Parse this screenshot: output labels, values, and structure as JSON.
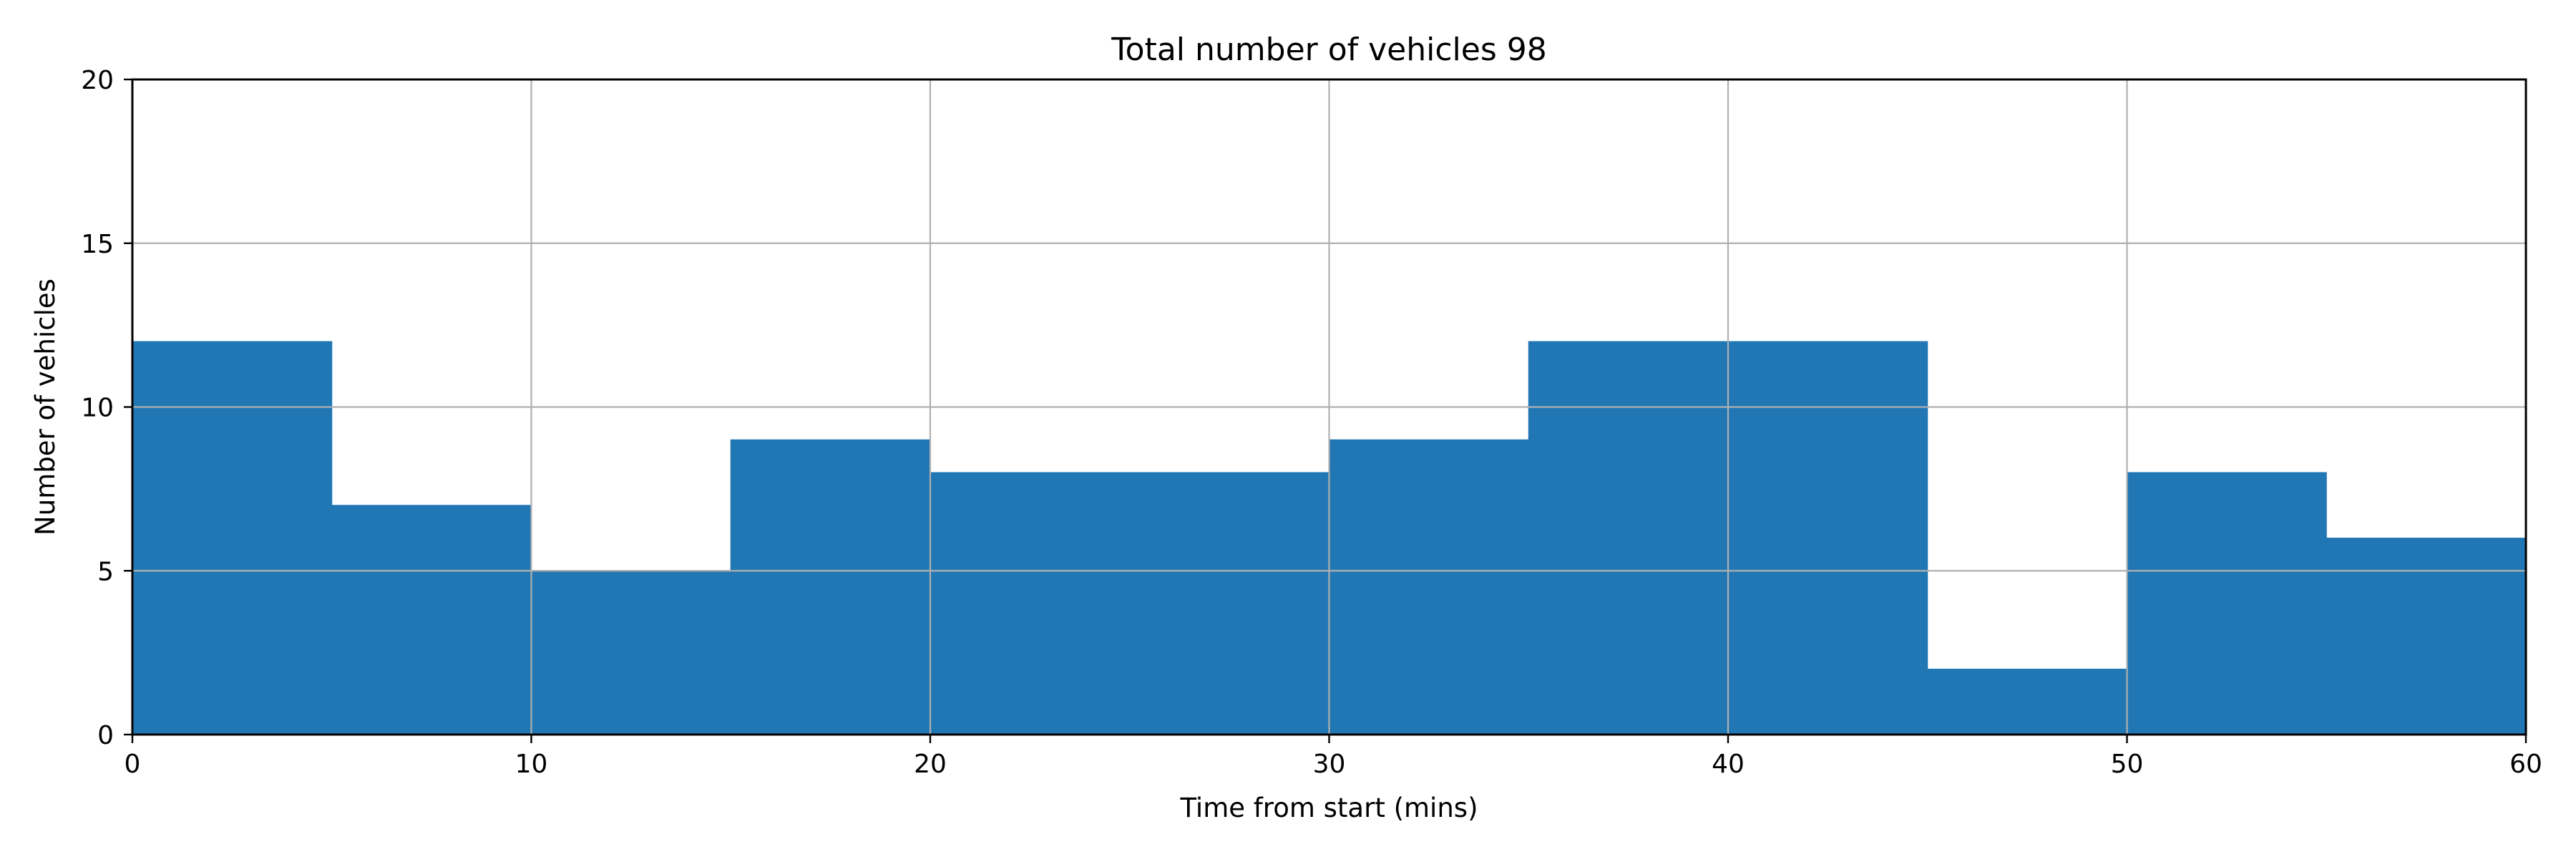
{
  "chart_data": {
    "type": "bar",
    "title": "Total number of vehicles  98",
    "xlabel": "Time from start (mins)",
    "ylabel": "Number of vehicles",
    "xlim": [
      0,
      60
    ],
    "ylim": [
      0,
      20
    ],
    "xticks": [
      0,
      10,
      20,
      30,
      40,
      50,
      60
    ],
    "yticks": [
      0,
      5,
      10,
      15,
      20
    ],
    "grid": true,
    "bin_edges": [
      0,
      5,
      10,
      15,
      20,
      25,
      30,
      35,
      40,
      45,
      50,
      55,
      60
    ],
    "values": [
      12,
      7,
      5,
      9,
      8,
      8,
      9,
      12,
      12,
      2,
      8,
      6
    ],
    "bar_color": "#2077b4",
    "grid_color": "#b0b0b0"
  }
}
